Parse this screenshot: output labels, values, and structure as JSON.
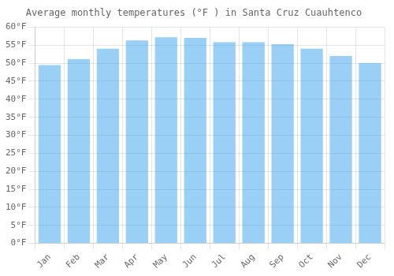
{
  "chart_data": {
    "type": "bar",
    "title": "Average monthly temperatures (°F ) in Santa Cruz Cuauhtenco",
    "categories": [
      "Jan",
      "Feb",
      "Mar",
      "Apr",
      "May",
      "Jun",
      "Jul",
      "Aug",
      "Sep",
      "Oct",
      "Nov",
      "Dec"
    ],
    "values": [
      49.5,
      51.1,
      54.0,
      56.3,
      57.2,
      57.0,
      55.8,
      55.8,
      55.3,
      54.0,
      52.0,
      50.0
    ],
    "ylim": [
      0,
      60
    ],
    "yticks": [
      {
        "value": 0,
        "label": "0°F"
      },
      {
        "value": 5,
        "label": "5°F"
      },
      {
        "value": 10,
        "label": "10°F"
      },
      {
        "value": 15,
        "label": "15°F"
      },
      {
        "value": 20,
        "label": "20°F"
      },
      {
        "value": 25,
        "label": "25°F"
      },
      {
        "value": 30,
        "label": "30°F"
      },
      {
        "value": 35,
        "label": "35°F"
      },
      {
        "value": 40,
        "label": "40°F"
      },
      {
        "value": 45,
        "label": "45°F"
      },
      {
        "value": 50,
        "label": "50°F"
      },
      {
        "value": 55,
        "label": "55°F"
      },
      {
        "value": 60,
        "label": "60°F"
      }
    ],
    "grid": true
  }
}
